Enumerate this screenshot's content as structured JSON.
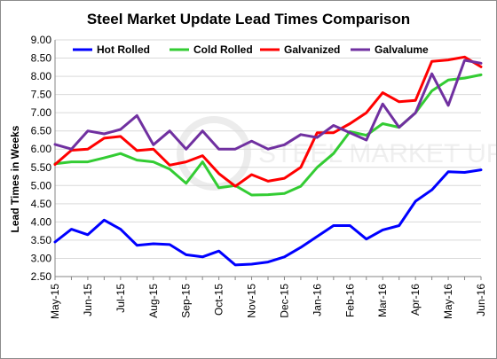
{
  "chart_data": {
    "type": "line",
    "title": "Steel Market Update Lead Times Comparison",
    "xlabel": "",
    "ylabel": "Lead Times in Weeks",
    "ylim": [
      2.5,
      9.0
    ],
    "ytick_step": 0.5,
    "ytick_labels": [
      "2.50",
      "3.00",
      "3.50",
      "4.00",
      "4.50",
      "5.00",
      "5.50",
      "6.00",
      "6.50",
      "7.00",
      "7.50",
      "8.00",
      "8.50",
      "9.00"
    ],
    "grid": true,
    "legend": "top",
    "watermark": "STEEL MARKET UPDATE",
    "x_labels": [
      "May-15",
      "Jun-15",
      "Jul-15",
      "Aug-15",
      "Sep-15",
      "Oct-15",
      "Nov-15",
      "Dec-15",
      "Jan-16",
      "Feb-16",
      "Mar-16",
      "Apr-16",
      "May-16",
      "Jun-16"
    ],
    "x_label_step": 2,
    "series": [
      {
        "name": "Hot Rolled",
        "color": "#0000ff",
        "values": [
          3.45,
          3.8,
          3.65,
          4.05,
          3.8,
          3.36,
          3.4,
          3.38,
          3.1,
          3.04,
          3.2,
          2.82,
          2.84,
          2.9,
          3.04,
          3.3,
          3.6,
          3.9,
          3.9,
          3.53,
          3.78,
          3.9,
          4.57,
          4.88,
          5.38,
          5.36,
          5.43
        ]
      },
      {
        "name": "Cold Rolled",
        "color": "#33cc33",
        "values": [
          5.6,
          5.65,
          5.65,
          5.76,
          5.88,
          5.7,
          5.65,
          5.45,
          5.06,
          5.65,
          4.94,
          5.0,
          4.74,
          4.75,
          4.78,
          4.98,
          5.5,
          5.88,
          6.48,
          6.38,
          6.7,
          6.6,
          7.0,
          7.6,
          7.9,
          7.95,
          8.04
        ]
      },
      {
        "name": "Galvanized",
        "color": "#ff0000",
        "values": [
          5.58,
          5.97,
          6.0,
          6.3,
          6.35,
          5.96,
          6.0,
          5.56,
          5.65,
          5.82,
          5.33,
          4.98,
          5.3,
          5.12,
          5.2,
          5.5,
          6.45,
          6.45,
          6.7,
          7.0,
          7.55,
          7.3,
          7.34,
          8.41,
          8.45,
          8.53,
          8.26
        ]
      },
      {
        "name": "Galvalume",
        "color": "#7030a0",
        "values": [
          6.13,
          6.0,
          6.5,
          6.42,
          6.54,
          6.92,
          6.12,
          6.5,
          6.0,
          6.5,
          6.0,
          6.0,
          6.22,
          6.0,
          6.12,
          6.4,
          6.32,
          6.65,
          6.45,
          6.25,
          7.24,
          6.6,
          7.0,
          8.07,
          7.2,
          8.44,
          8.36
        ]
      }
    ]
  }
}
